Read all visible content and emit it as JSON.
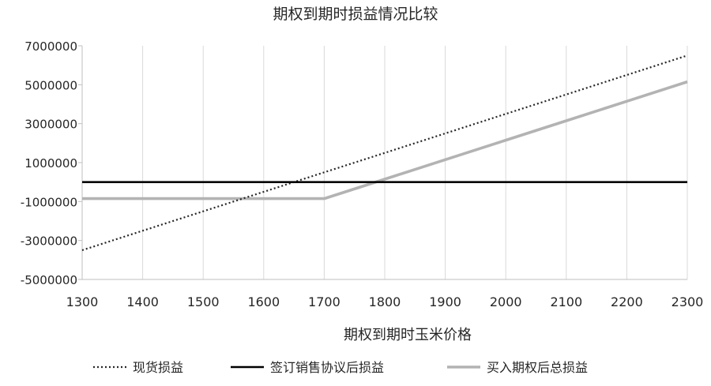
{
  "chart_data": {
    "type": "line",
    "title": "期权到期时损益情况比较",
    "xlabel": "期权到期时玉米价格",
    "ylabel": "",
    "x": [
      1300,
      1400,
      1500,
      1600,
      1700,
      1800,
      1900,
      2000,
      2100,
      2200,
      2300
    ],
    "xlim": [
      1300,
      2300
    ],
    "ylim": [
      -5000000,
      7000000
    ],
    "yticks": [
      7000000,
      5000000,
      3000000,
      1000000,
      -1000000,
      -3000000,
      -5000000
    ],
    "grid": "vertical",
    "legend_position": "bottom",
    "series": [
      {
        "name": "现货损益",
        "style": "dotted",
        "color": "#262626",
        "values": [
          -3500000,
          -2500000,
          -1500000,
          -500000,
          500000,
          1500000,
          2500000,
          3500000,
          4500000,
          5500000,
          6500000
        ]
      },
      {
        "name": "签订销售协议后损益",
        "style": "solid",
        "color": "#000000",
        "values": [
          0,
          0,
          0,
          0,
          0,
          0,
          0,
          0,
          0,
          0,
          0
        ]
      },
      {
        "name": "买入期权后总损益",
        "style": "solid",
        "color": "#b3b3b3",
        "values": [
          -850000,
          -850000,
          -850000,
          -850000,
          -850000,
          150000,
          1150000,
          2150000,
          3150000,
          4150000,
          5150000
        ]
      }
    ]
  }
}
